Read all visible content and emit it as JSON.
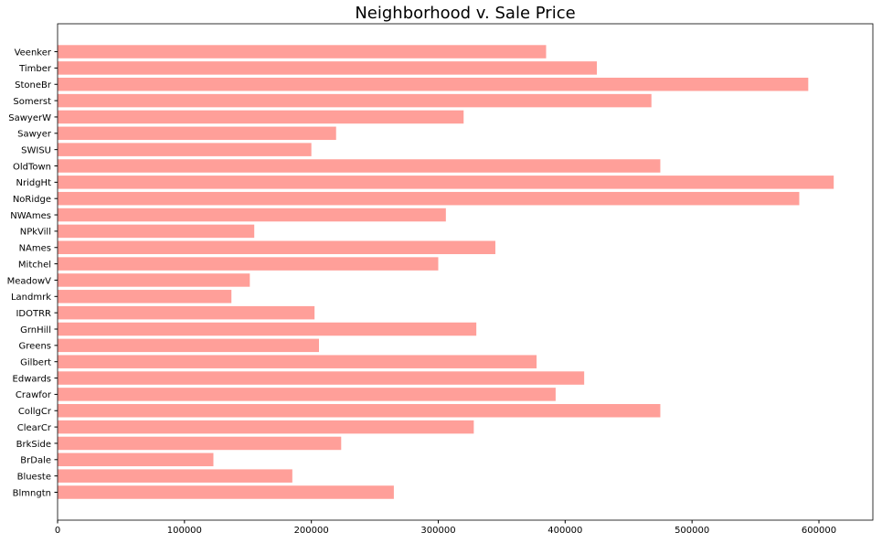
{
  "chart_data": {
    "type": "bar",
    "orientation": "horizontal",
    "title": "Neighborhood v. Sale Price",
    "xlabel": "",
    "ylabel": "",
    "xlim": [
      0,
      642500
    ],
    "x_ticks": [
      0,
      100000,
      200000,
      300000,
      400000,
      500000,
      600000
    ],
    "bar_color": "#ff9f99",
    "grid": false,
    "categories": [
      "Blmngtn",
      "Blueste",
      "BrDale",
      "BrkSide",
      "ClearCr",
      "CollgCr",
      "Crawfor",
      "Edwards",
      "Gilbert",
      "Greens",
      "GrnHill",
      "IDOTRR",
      "Landmrk",
      "MeadowV",
      "Mitchel",
      "NAmes",
      "NPkVill",
      "NWAmes",
      "NoRidge",
      "NridgHt",
      "OldTown",
      "SWISU",
      "Sawyer",
      "SawyerW",
      "Somerst",
      "StoneBr",
      "Timber",
      "Veenker"
    ],
    "values": [
      265000,
      185000,
      122800,
      223500,
      328000,
      475000,
      392500,
      415000,
      377500,
      206000,
      330000,
      202500,
      137000,
      151500,
      300000,
      345000,
      155000,
      306000,
      584500,
      611657,
      475000,
      200000,
      219500,
      320000,
      468000,
      591587,
      425000,
      385000
    ]
  }
}
